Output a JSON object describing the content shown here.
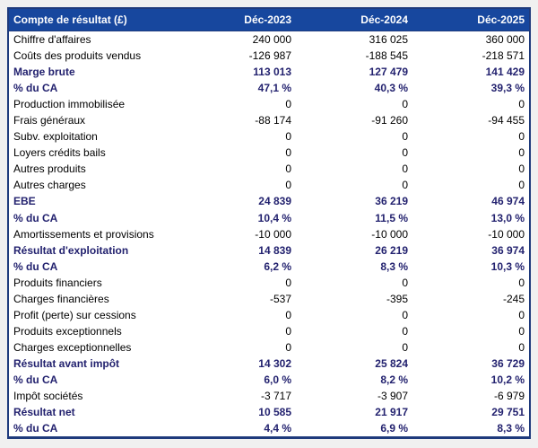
{
  "page": {
    "background": "#f0f0f0"
  },
  "colors": {
    "header_bg": "#17479e",
    "table_border": "#1e3a7c",
    "emphasis_text": "#23226f",
    "body_text": "#000000",
    "row_bg": "#ffffff"
  },
  "table": {
    "title_column_header": "Compte de résultat (£)",
    "period_columns": [
      "Déc-2023",
      "Déc-2024",
      "Déc-2025"
    ],
    "rows": [
      {
        "label": "Chiffre d'affaires",
        "values": [
          "240 000",
          "316 025",
          "360 000"
        ],
        "emphasis": false
      },
      {
        "label": "Coûts des produits vendus",
        "values": [
          "-126 987",
          "-188 545",
          "-218 571"
        ],
        "emphasis": false
      },
      {
        "label": "Marge brute",
        "values": [
          "113 013",
          "127 479",
          "141 429"
        ],
        "emphasis": true
      },
      {
        "label": "% du CA",
        "values": [
          "47,1 %",
          "40,3 %",
          "39,3 %"
        ],
        "emphasis": true
      },
      {
        "label": "Production immobilisée",
        "values": [
          "0",
          "0",
          "0"
        ],
        "emphasis": false
      },
      {
        "label": "Frais généraux",
        "values": [
          "-88 174",
          "-91 260",
          "-94 455"
        ],
        "emphasis": false
      },
      {
        "label": "Subv. exploitation",
        "values": [
          "0",
          "0",
          "0"
        ],
        "emphasis": false
      },
      {
        "label": "Loyers crédits bails",
        "values": [
          "0",
          "0",
          "0"
        ],
        "emphasis": false
      },
      {
        "label": "Autres produits",
        "values": [
          "0",
          "0",
          "0"
        ],
        "emphasis": false
      },
      {
        "label": "Autres charges",
        "values": [
          "0",
          "0",
          "0"
        ],
        "emphasis": false
      },
      {
        "label": "EBE",
        "values": [
          "24 839",
          "36 219",
          "46 974"
        ],
        "emphasis": true
      },
      {
        "label": "% du CA",
        "values": [
          "10,4 %",
          "11,5 %",
          "13,0 %"
        ],
        "emphasis": true
      },
      {
        "label": "Amortissements et provisions",
        "values": [
          "-10 000",
          "-10 000",
          "-10 000"
        ],
        "emphasis": false
      },
      {
        "label": "Résultat d'exploitation",
        "values": [
          "14 839",
          "26 219",
          "36 974"
        ],
        "emphasis": true
      },
      {
        "label": "% du CA",
        "values": [
          "6,2 %",
          "8,3 %",
          "10,3 %"
        ],
        "emphasis": true
      },
      {
        "label": "Produits financiers",
        "values": [
          "0",
          "0",
          "0"
        ],
        "emphasis": false
      },
      {
        "label": "Charges financières",
        "values": [
          "-537",
          "-395",
          "-245"
        ],
        "emphasis": false
      },
      {
        "label": "Profit (perte) sur cessions",
        "values": [
          "0",
          "0",
          "0"
        ],
        "emphasis": false
      },
      {
        "label": "Produits exceptionnels",
        "values": [
          "0",
          "0",
          "0"
        ],
        "emphasis": false
      },
      {
        "label": "Charges exceptionnelles",
        "values": [
          "0",
          "0",
          "0"
        ],
        "emphasis": false
      },
      {
        "label": "Résultat avant impôt",
        "values": [
          "14 302",
          "25 824",
          "36 729"
        ],
        "emphasis": true
      },
      {
        "label": "% du CA",
        "values": [
          "6,0 %",
          "8,2 %",
          "10,2 %"
        ],
        "emphasis": true
      },
      {
        "label": "Impôt sociétés",
        "values": [
          "-3 717",
          "-3 907",
          "-6 979"
        ],
        "emphasis": false
      },
      {
        "label": "Résultat net",
        "values": [
          "10 585",
          "21 917",
          "29 751"
        ],
        "emphasis": true
      },
      {
        "label": "% du CA",
        "values": [
          "4,4 %",
          "6,9 %",
          "8,3 %"
        ],
        "emphasis": true
      }
    ]
  }
}
